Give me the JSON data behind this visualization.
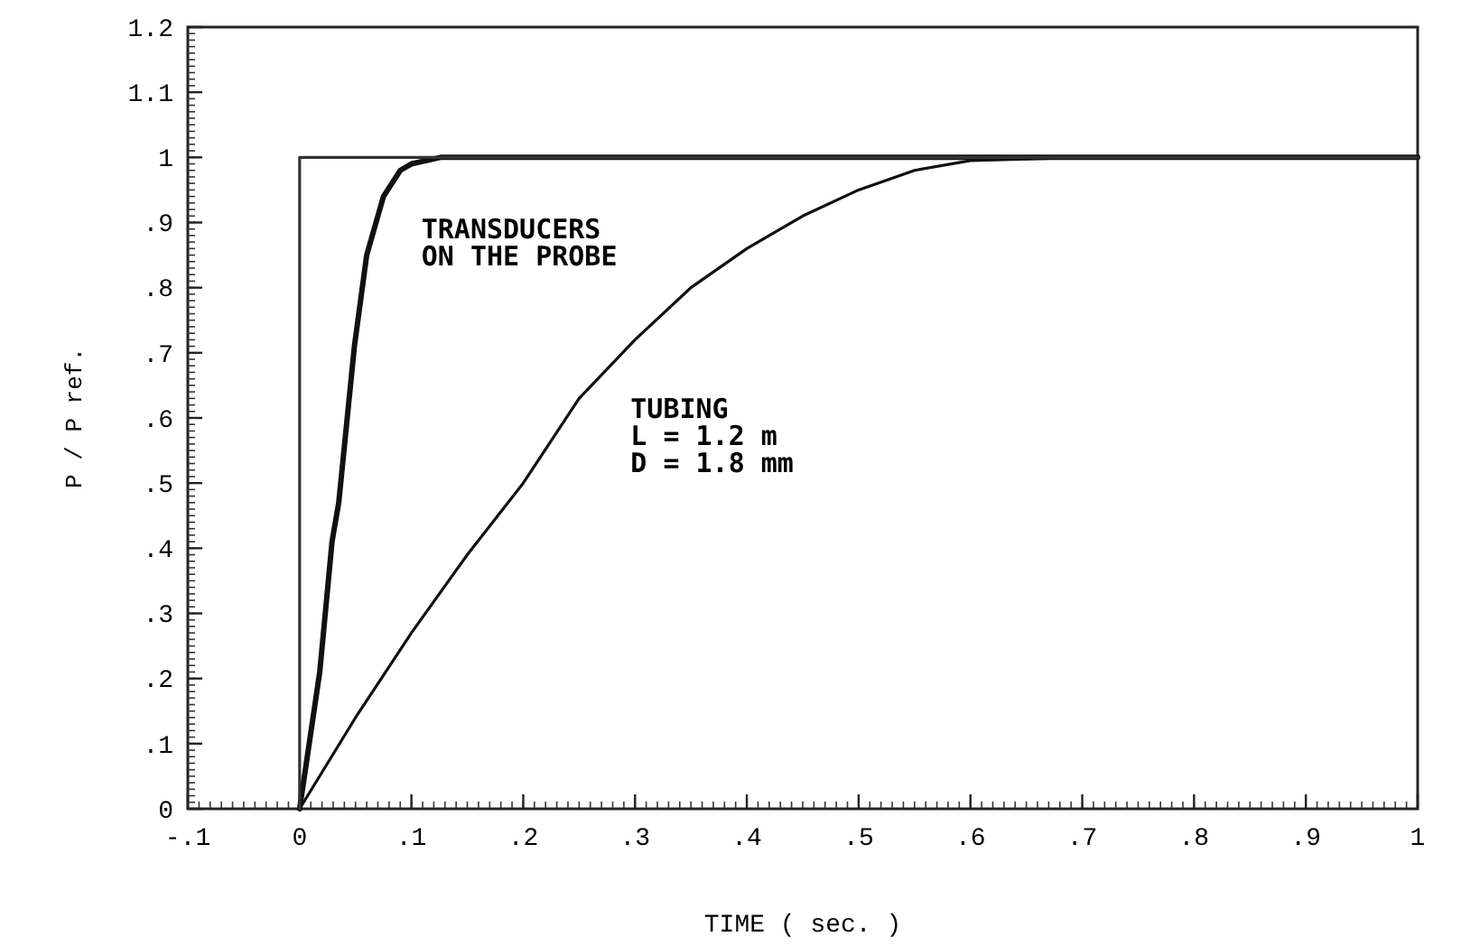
{
  "chart_data": {
    "type": "line",
    "xlabel": "TIME ( sec. )",
    "ylabel": "P / P ref.",
    "xlim": [
      -0.1,
      1.0
    ],
    "ylim": [
      0,
      1.2
    ],
    "xticks": [
      {
        "value": -0.1,
        "label": "-.1"
      },
      0,
      {
        "value": 0.1,
        "label": ".1"
      },
      {
        "value": 0.2,
        "label": ".2"
      },
      {
        "value": 0.3,
        "label": ".3"
      },
      {
        "value": 0.4,
        "label": ".4"
      },
      {
        "value": 0.5,
        "label": ".5"
      },
      {
        "value": 0.6,
        "label": ".6"
      },
      {
        "value": 0.7,
        "label": ".7"
      },
      {
        "value": 0.8,
        "label": ".8"
      },
      {
        "value": 0.9,
        "label": ".9"
      },
      1
    ],
    "yticks": [
      0,
      {
        "value": 0.1,
        "label": ".1"
      },
      {
        "value": 0.2,
        "label": ".2"
      },
      {
        "value": 0.3,
        "label": ".3"
      },
      {
        "value": 0.4,
        "label": ".4"
      },
      {
        "value": 0.5,
        "label": ".5"
      },
      {
        "value": 0.6,
        "label": ".6"
      },
      {
        "value": 0.7,
        "label": ".7"
      },
      {
        "value": 0.8,
        "label": ".8"
      },
      {
        "value": 0.9,
        "label": ".9"
      },
      1,
      1.1,
      1.2
    ],
    "grid": false,
    "marker": "none",
    "line_style": "solid",
    "series": [
      {
        "color": "#333333",
        "x": [
          0,
          0,
          1.0
        ],
        "values": [
          0,
          1,
          1
        ]
      },
      {
        "color": "#111111",
        "x": [
          0,
          0.018,
          0.029,
          0.035,
          0.049,
          0.06,
          0.075,
          0.09,
          0.1,
          0.126,
          1.0
        ],
        "values": [
          0,
          0.21,
          0.41,
          0.47,
          0.71,
          0.85,
          0.94,
          0.98,
          0.99,
          1,
          1
        ]
      },
      {
        "color": "#111111",
        "x": [
          0,
          0.05,
          0.1,
          0.15,
          0.2,
          0.25,
          0.3,
          0.35,
          0.4,
          0.45,
          0.5,
          0.55,
          0.6,
          0.7,
          1.0
        ],
        "values": [
          0,
          0.14,
          0.27,
          0.39,
          0.5,
          0.63,
          0.72,
          0.8,
          0.86,
          0.91,
          0.95,
          0.98,
          0.995,
          1,
          1
        ]
      }
    ],
    "annotations": [
      "TRANSDUCERS\nON THE PROBE",
      "TUBING\nL = 1.2 m\nD = 1.8 mm"
    ]
  }
}
